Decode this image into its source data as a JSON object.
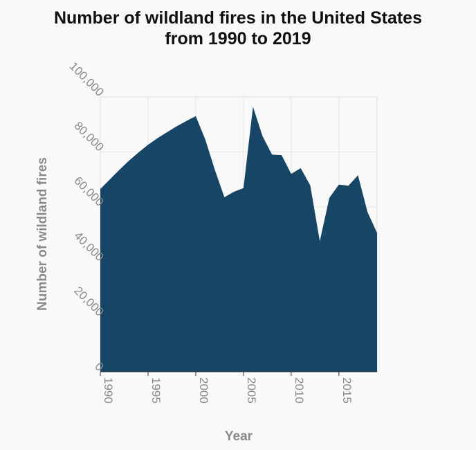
{
  "chart_data": {
    "type": "area",
    "title_lines": [
      "Number of wildland fires in the United States",
      "from 1990 to 2019"
    ],
    "xlabel": "Year",
    "ylabel": "Number of wildland fires",
    "xlim": [
      1990,
      2019
    ],
    "ylim": [
      0,
      100000
    ],
    "x_ticks": [
      1990,
      1995,
      2000,
      2005,
      2010,
      2015
    ],
    "y_ticks": [
      0,
      20000,
      40000,
      60000,
      80000,
      100000
    ],
    "x_tick_labels": [
      "1990",
      "1995",
      "2000",
      "2005",
      "2010",
      "2015"
    ],
    "y_tick_labels": [
      "0",
      "20,000",
      "40,000",
      "60,000",
      "80,000",
      "100,000"
    ],
    "grid": true,
    "fill_color": "#174566",
    "series": [
      {
        "x": [
          1990,
          1991,
          1992,
          1993,
          1994,
          1995,
          1996,
          1997,
          1998,
          1999,
          2000,
          2001,
          2002,
          2003,
          2004,
          2005,
          2006,
          2007,
          2008,
          2009,
          2010,
          2011,
          2012,
          2013,
          2014,
          2015,
          2016,
          2017,
          2018,
          2019
        ],
        "values": [
          66500,
          70000,
          73500,
          76800,
          79800,
          82600,
          85000,
          87200,
          89300,
          91200,
          93000,
          84500,
          73500,
          63500,
          65500,
          66800,
          96400,
          85700,
          79000,
          78800,
          72000,
          74100,
          67800,
          47500,
          63300,
          68100,
          67700,
          71500,
          58100,
          50500
        ]
      }
    ]
  }
}
